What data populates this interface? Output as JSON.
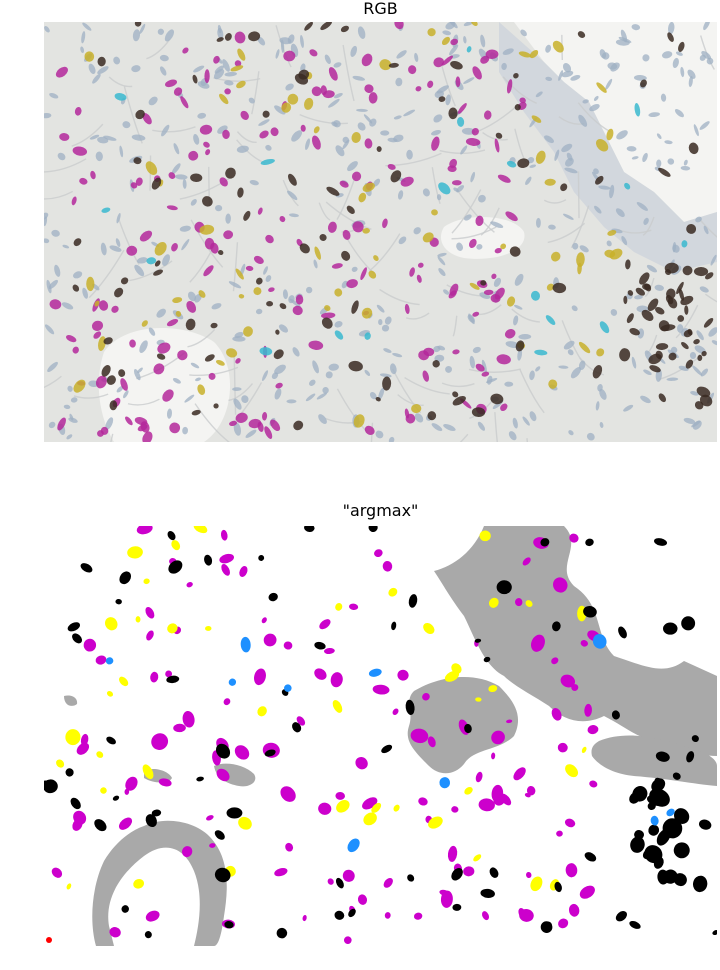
{
  "panels": {
    "top": {
      "title": "RGB",
      "kind": "brightfield multiplex IHC tissue image"
    },
    "bottom": {
      "title": "\"argmax\"",
      "kind": "per-pixel argmax class map"
    }
  },
  "palette": {
    "tissue_background": "#e3e4e1",
    "nuclei_blue": "#9fb0c3",
    "stroma_fiber": "#c9cccd",
    "lumen": "#f4f4f2",
    "stain_magenta": "#b4289b",
    "stain_yellow": "#c8b02a",
    "stain_brown": "#3a2a22",
    "stain_cyan": "#3ab9cf",
    "map_background": "#ffffff",
    "map_gray": "#a9a9a9",
    "map_magenta": "#cc00cc",
    "map_yellow": "#ffff00",
    "map_black": "#000000",
    "map_blue": "#1e90ff",
    "map_red": "#ff0000"
  }
}
